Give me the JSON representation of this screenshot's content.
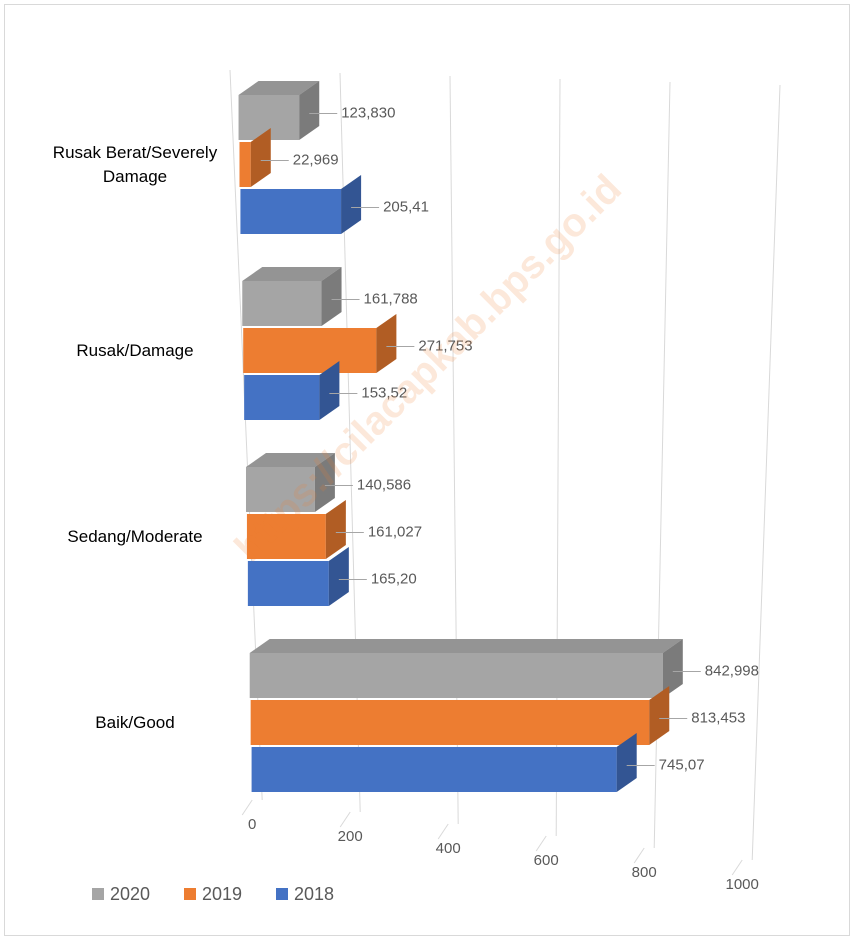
{
  "chart_data": {
    "type": "bar3d_horizontal",
    "categories": [
      "Rusak Berat/Severely Damage",
      "Rusak/Damage",
      "Sedang/Moderate",
      "Baik/Good"
    ],
    "series": [
      {
        "name": "2020",
        "color": "#a5a5a5",
        "values": [
          123.83,
          161.788,
          140.586,
          842.998
        ],
        "value_labels": [
          "123,830",
          "161,788",
          "140,586",
          "842,998"
        ]
      },
      {
        "name": "2019",
        "color": "#ed7d31",
        "values": [
          22.969,
          271.753,
          161.027,
          813.453
        ],
        "value_labels": [
          "22,969",
          "271,753",
          "161,027",
          "813,453"
        ]
      },
      {
        "name": "2018",
        "color": "#4472c4",
        "values": [
          205.41,
          153.52,
          165.2,
          745.07
        ],
        "value_labels": [
          "205,41",
          "153,52",
          "165,20",
          "745,07"
        ]
      }
    ],
    "xlim": [
      0,
      1000
    ],
    "xticks": [
      0,
      200,
      400,
      600,
      800,
      1000
    ],
    "grid": true,
    "legend": "bottom-left",
    "watermark": "https://cilacapkab.bps.go.id"
  }
}
